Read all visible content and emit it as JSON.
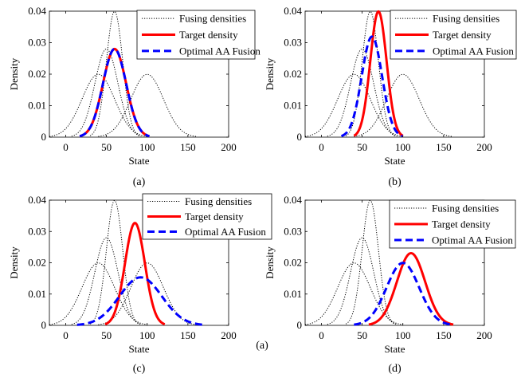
{
  "chart_data": [
    {
      "type": "line",
      "panel_label": "(a)",
      "xlabel": "State",
      "ylabel": "Density",
      "xlim": [
        -20,
        200
      ],
      "ylim": [
        0,
        0.04
      ],
      "xticks": [
        0,
        50,
        100,
        150,
        200
      ],
      "yticks": [
        0,
        0.01,
        0.02,
        0.03,
        0.04
      ],
      "ytick_labels": [
        "0",
        "0.01",
        "0.02",
        "0.03",
        "0.04"
      ],
      "legend_position": "top-right",
      "fusing_densities": [
        {
          "mean": 40,
          "sd": 20
        },
        {
          "mean": 50,
          "sd": 14.25
        },
        {
          "mean": 60,
          "sd": 10
        },
        {
          "mean": 100,
          "sd": 20
        }
      ],
      "series": [
        {
          "name": "Fusing densities",
          "style": "dotted",
          "color": "#000000"
        },
        {
          "name": "Target density",
          "style": "solid",
          "color": "#ff0000",
          "mean": 60,
          "sd": 14.25
        },
        {
          "name": "Optimal AA Fusion",
          "style": "dashed",
          "color": "#0000ff",
          "mean": 60,
          "sd": 14.25
        }
      ]
    },
    {
      "type": "line",
      "panel_label": "(b)",
      "xlabel": "State",
      "ylabel": "Density",
      "xlim": [
        -20,
        200
      ],
      "ylim": [
        0,
        0.04
      ],
      "xticks": [
        0,
        50,
        100,
        150,
        200
      ],
      "yticks": [
        0,
        0.01,
        0.02,
        0.03,
        0.04
      ],
      "ytick_labels": [
        "0",
        "0.01",
        "0.02",
        "0.03",
        "0.04"
      ],
      "legend_position": "top-right",
      "fusing_densities": [
        {
          "mean": 40,
          "sd": 20
        },
        {
          "mean": 50,
          "sd": 14.25
        },
        {
          "mean": 60,
          "sd": 10
        },
        {
          "mean": 100,
          "sd": 20
        }
      ],
      "series": [
        {
          "name": "Fusing densities",
          "style": "dotted",
          "color": "#000000"
        },
        {
          "name": "Target density",
          "style": "solid",
          "color": "#ff0000",
          "mean": 70,
          "sd": 10
        },
        {
          "name": "Optimal AA Fusion",
          "style": "dashed",
          "color": "#0000ff",
          "mean": 62,
          "sd": 12.5
        }
      ]
    },
    {
      "type": "line",
      "panel_label": "(c)",
      "xlabel": "State",
      "ylabel": "Density",
      "xlim": [
        -20,
        200
      ],
      "ylim": [
        0,
        0.04
      ],
      "xticks": [
        0,
        50,
        100,
        150,
        200
      ],
      "yticks": [
        0,
        0.01,
        0.02,
        0.03,
        0.04
      ],
      "ytick_labels": [
        "0",
        "0.01",
        "0.02",
        "0.03",
        "0.04"
      ],
      "legend_position": "top-right",
      "fusing_densities": [
        {
          "mean": 40,
          "sd": 20
        },
        {
          "mean": 50,
          "sd": 14.25
        },
        {
          "mean": 60,
          "sd": 10
        },
        {
          "mean": 100,
          "sd": 20
        }
      ],
      "series": [
        {
          "name": "Fusing densities",
          "style": "dotted",
          "color": "#000000"
        },
        {
          "name": "Target density",
          "style": "solid",
          "color": "#ff0000",
          "mean": 85,
          "sd": 12.2
        },
        {
          "name": "Optimal AA Fusion",
          "style": "dashed",
          "color": "#0000ff",
          "mean": 92,
          "sd": 26
        }
      ]
    },
    {
      "type": "line",
      "panel_label": "(d)",
      "xlabel": "State",
      "ylabel": "Density",
      "xlim": [
        -20,
        200
      ],
      "ylim": [
        0,
        0.04
      ],
      "xticks": [
        0,
        50,
        100,
        150,
        200
      ],
      "yticks": [
        0,
        0.01,
        0.02,
        0.03,
        0.04
      ],
      "ytick_labels": [
        "0",
        "0.01",
        "0.02",
        "0.03",
        "0.04"
      ],
      "legend_position": "top-right",
      "fusing_densities": [
        {
          "mean": 40,
          "sd": 20
        },
        {
          "mean": 50,
          "sd": 14.25
        },
        {
          "mean": 60,
          "sd": 10
        }
      ],
      "series": [
        {
          "name": "Fusing densities",
          "style": "dotted",
          "color": "#000000"
        },
        {
          "name": "Target density",
          "style": "solid",
          "color": "#ff0000",
          "mean": 110,
          "sd": 17.3
        },
        {
          "name": "Optimal AA Fusion",
          "style": "dashed",
          "color": "#0000ff",
          "mean": 100,
          "sd": 20
        }
      ]
    }
  ],
  "stray_label": "(a)"
}
